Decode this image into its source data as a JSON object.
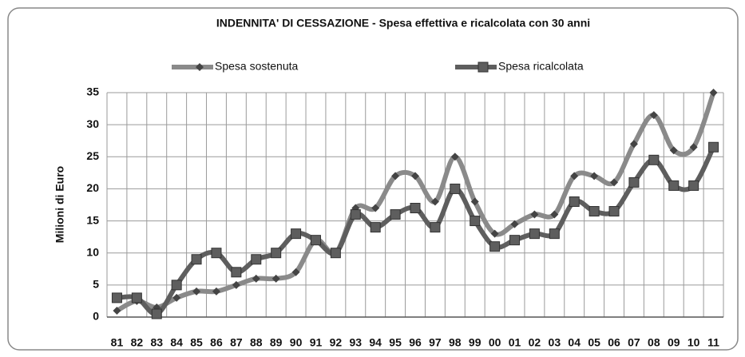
{
  "chart_data": {
    "type": "line",
    "title": "INDENNITA' DI CESSAZIONE - Spesa effettiva e ricalcolata con 30 anni",
    "y_label": "Milioni di Euro",
    "categories": [
      "81",
      "82",
      "83",
      "84",
      "85",
      "86",
      "87",
      "88",
      "89",
      "90",
      "91",
      "92",
      "93",
      "94",
      "95",
      "96",
      "97",
      "98",
      "99",
      "00",
      "01",
      "02",
      "03",
      "04",
      "05",
      "06",
      "07",
      "08",
      "09",
      "10",
      "11"
    ],
    "series": [
      {
        "name": "Spesa sostenuta",
        "color": "#8a8a8a",
        "marker": "diamond",
        "values": [
          1,
          2.5,
          1.5,
          3,
          4,
          4,
          5,
          6,
          6,
          7,
          12,
          10,
          17,
          17,
          22,
          22,
          18,
          25,
          18,
          13,
          14.5,
          16,
          16,
          22,
          22,
          21,
          27,
          31.5,
          26,
          26.5,
          35
        ]
      },
      {
        "name": "Spesa ricalcolata",
        "color": "#5e5e5e",
        "marker": "square",
        "values": [
          3,
          3,
          0.5,
          5,
          9,
          10,
          7,
          9,
          10,
          13,
          12,
          10,
          16,
          14,
          16,
          17,
          14,
          20,
          15,
          11,
          12,
          13,
          13,
          18,
          16.5,
          16.5,
          21,
          24.5,
          20.5,
          20.5,
          26.5
        ]
      }
    ],
    "ylim": [
      0,
      35
    ],
    "yticks": [
      0,
      5,
      10,
      15,
      20,
      25,
      30,
      35
    ],
    "grid": true,
    "legend": "top"
  }
}
